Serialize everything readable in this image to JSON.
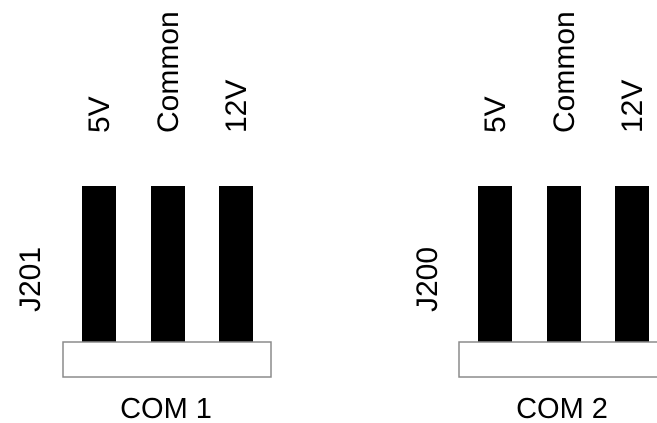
{
  "connectors": [
    {
      "ref": "J201",
      "port": "COM 1",
      "pins": [
        "5V",
        "Common",
        "12V"
      ]
    },
    {
      "ref": "J200",
      "port": "COM 2",
      "pins": [
        "5V",
        "Common",
        "12V"
      ]
    }
  ],
  "colors": {
    "pin": "#000000",
    "base_fill": "#ffffff",
    "base_stroke": "#8a8a8a",
    "text": "#000000"
  }
}
